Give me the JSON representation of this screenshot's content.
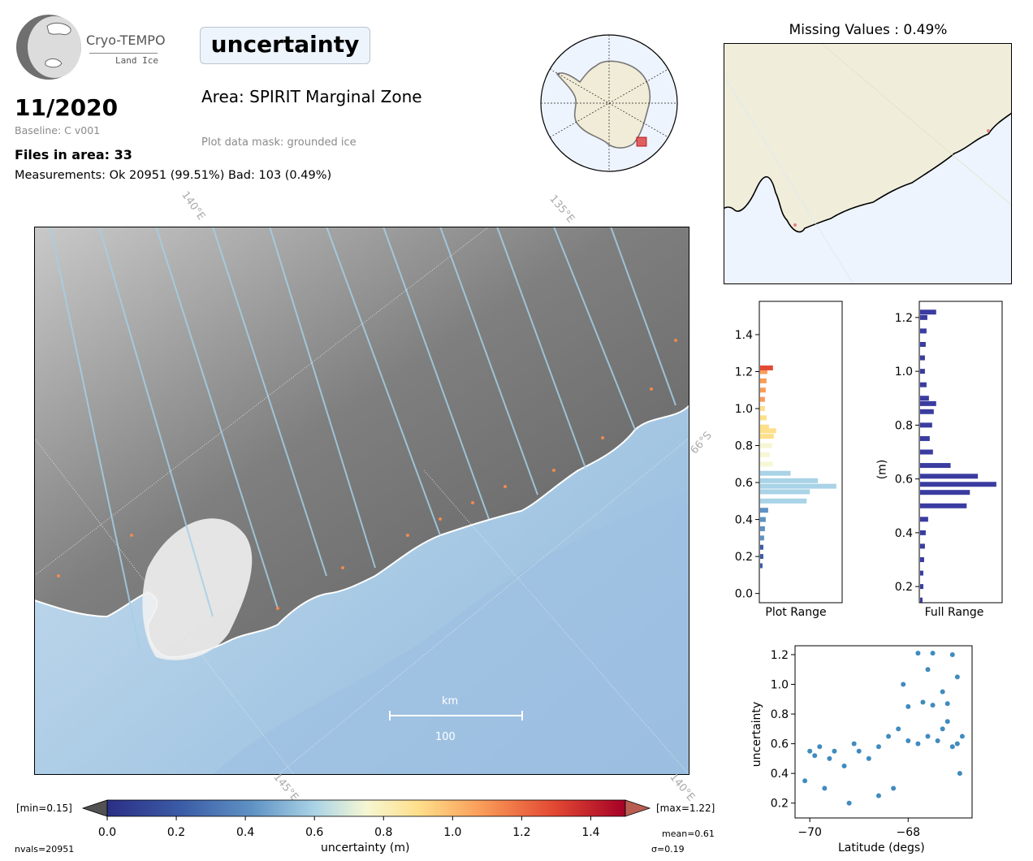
{
  "logo": {
    "title": "Cryo-TEMPO",
    "subtitle": "Land Ice"
  },
  "header": {
    "parameter": "uncertainty",
    "date": "11/2020",
    "baseline": "Baseline: C v001",
    "files": "Files in area: 33",
    "measurements": "Measurements: Ok 20951 (99.51%) Bad: 103 (0.49%)",
    "area": "Area: SPIRIT Marginal Zone",
    "mask": "Plot data mask: grounded ice"
  },
  "missing": {
    "title": "Missing Values : 0.49%"
  },
  "main_map": {
    "graticule_labels": [
      "140°E",
      "135°E",
      "66°S",
      "145°E",
      "140°E"
    ],
    "scale_unit": "km",
    "scale_value": "100"
  },
  "colorbar": {
    "min_label": "[min=0.15]",
    "max_label": "[max=1.22]",
    "ticks": [
      "0.0",
      "0.2",
      "0.4",
      "0.6",
      "0.8",
      "1.0",
      "1.2",
      "1.4"
    ],
    "label": "uncertainty (m)",
    "nvals": "nvals=20951",
    "mean": "mean=0.61",
    "sigma": "σ=0.19",
    "colors": [
      "#2b2f86",
      "#3b5ba6",
      "#5f92c4",
      "#a9d3e6",
      "#f6f7d3",
      "#fedf8b",
      "#f99d59",
      "#e34a33",
      "#a50026"
    ]
  },
  "chart_data": [
    {
      "type": "bar",
      "orientation": "horizontal",
      "xlabel": "Plot Range",
      "ylabel": "",
      "ylim": [
        -0.05,
        1.58
      ],
      "yticks": [
        "0.0",
        "0.2",
        "0.4",
        "0.6",
        "0.8",
        "1.0",
        "1.2",
        "1.4"
      ],
      "categories": [
        0.15,
        0.2,
        0.25,
        0.3,
        0.35,
        0.4,
        0.45,
        0.5,
        0.55,
        0.58,
        0.61,
        0.65,
        0.7,
        0.75,
        0.8,
        0.85,
        0.88,
        0.9,
        0.95,
        1.0,
        1.05,
        1.1,
        1.15,
        1.2,
        1.22
      ],
      "values": [
        3,
        4,
        4,
        5,
        6,
        7,
        10,
        58,
        62,
        95,
        72,
        38,
        16,
        12,
        15,
        17,
        20,
        11,
        8,
        6,
        6,
        7,
        8,
        9,
        16
      ]
    },
    {
      "type": "bar",
      "orientation": "horizontal",
      "xlabel": "Full Range",
      "ylabel": "(m)",
      "ylim": [
        0.14,
        1.26
      ],
      "yticks": [
        "0.2",
        "0.4",
        "0.6",
        "0.8",
        "1.0",
        "1.2"
      ],
      "categories": [
        0.15,
        0.2,
        0.25,
        0.3,
        0.35,
        0.4,
        0.45,
        0.5,
        0.55,
        0.58,
        0.61,
        0.65,
        0.7,
        0.75,
        0.8,
        0.85,
        0.88,
        0.9,
        0.95,
        1.0,
        1.05,
        1.1,
        1.15,
        1.2,
        1.22
      ],
      "values": [
        3,
        4,
        4,
        5,
        6,
        7,
        10,
        58,
        62,
        95,
        72,
        38,
        16,
        12,
        15,
        17,
        20,
        11,
        8,
        6,
        6,
        7,
        8,
        9,
        20
      ]
    },
    {
      "type": "scatter",
      "xlabel": "Latitude (degs)",
      "ylabel": "uncertainty",
      "xlim": [
        -70.3,
        -66.7
      ],
      "ylim": [
        0.1,
        1.26
      ],
      "xticks": [
        "−70",
        "−68"
      ],
      "yticks": [
        "0.2",
        "0.4",
        "0.6",
        "0.8",
        "1.0",
        "1.2"
      ],
      "x": [
        -70.1,
        -70.0,
        -69.9,
        -69.8,
        -69.6,
        -69.5,
        -69.3,
        -69.1,
        -69.0,
        -68.8,
        -68.6,
        -68.4,
        -68.2,
        -68.0,
        -67.8,
        -67.6,
        -67.4,
        -67.3,
        -67.2,
        -67.1,
        -67.0,
        -66.9,
        -68.1,
        -67.7,
        -67.5,
        -67.2,
        -67.0,
        -67.8,
        -67.5,
        -67.1,
        -68.3,
        -68.6,
        -69.2,
        -69.7,
        -67.6,
        -67.3,
        -68.0,
        -66.95
      ],
      "values": [
        0.35,
        0.55,
        0.52,
        0.58,
        0.5,
        0.55,
        0.45,
        0.6,
        0.55,
        0.5,
        0.58,
        0.65,
        0.7,
        0.62,
        0.6,
        0.65,
        0.62,
        0.7,
        0.75,
        0.58,
        0.6,
        0.65,
        1.0,
        0.88,
        0.86,
        0.87,
        1.05,
        1.21,
        1.21,
        1.2,
        0.3,
        0.25,
        0.2,
        0.3,
        1.1,
        0.95,
        0.85,
        0.4
      ]
    }
  ]
}
